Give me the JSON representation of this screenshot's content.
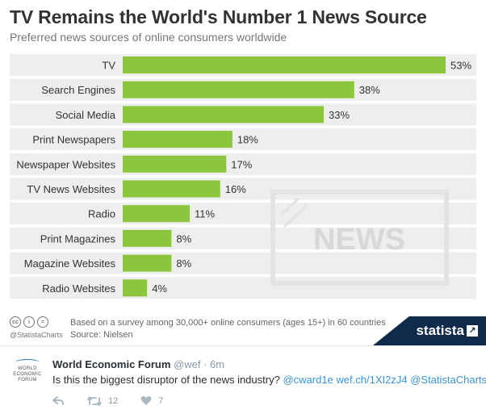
{
  "chart": {
    "title": "TV Remains the World's Number 1 News Source",
    "subtitle": "Preferred news sources of online consumers worldwide",
    "footer_note": "Based on a survey among 30,000+ online consumers (ages 15+) in 60 countries",
    "source": "Source: Nielsen",
    "handle": "@StatistaCharts",
    "brand": "statista",
    "illustration_text": "NEWS",
    "license_icons": [
      "cc-icon",
      "attribution-icon",
      "equals-icon"
    ]
  },
  "chart_data": {
    "type": "bar",
    "orientation": "horizontal",
    "categories": [
      "TV",
      "Search Engines",
      "Social Media",
      "Print Newspapers",
      "Newspaper Websites",
      "TV News Websites",
      "Radio",
      "Print Magazines",
      "Magazine Websites",
      "Radio Websites"
    ],
    "values": [
      53,
      38,
      33,
      18,
      17,
      16,
      11,
      8,
      8,
      4
    ],
    "value_labels": [
      "53%",
      "38%",
      "33%",
      "18%",
      "17%",
      "16%",
      "11%",
      "8%",
      "8%",
      "4%"
    ],
    "title": "TV Remains the World's Number 1 News Source",
    "xlabel": "",
    "ylabel": "",
    "xlim": [
      0,
      53
    ],
    "grid": false,
    "bar_color": "#8cc63f",
    "stripe_color": "#eeeeee"
  },
  "tweet": {
    "author": "World Economic Forum",
    "handle_time": "@wef · 6m",
    "text": "Is this the biggest disruptor of the news industry?",
    "mention": "@cward1e",
    "link": "wef.ch/1XI2zJ4",
    "tag": "@StatistaCharts",
    "logo_lines": [
      "WORLD",
      "ECONOMIC",
      "FORUM"
    ],
    "retweets": "12",
    "likes": "7"
  },
  "colors": {
    "accent_green": "#8cc63f",
    "statista_navy": "#0f2a4a",
    "link_blue": "#3b94d9"
  }
}
